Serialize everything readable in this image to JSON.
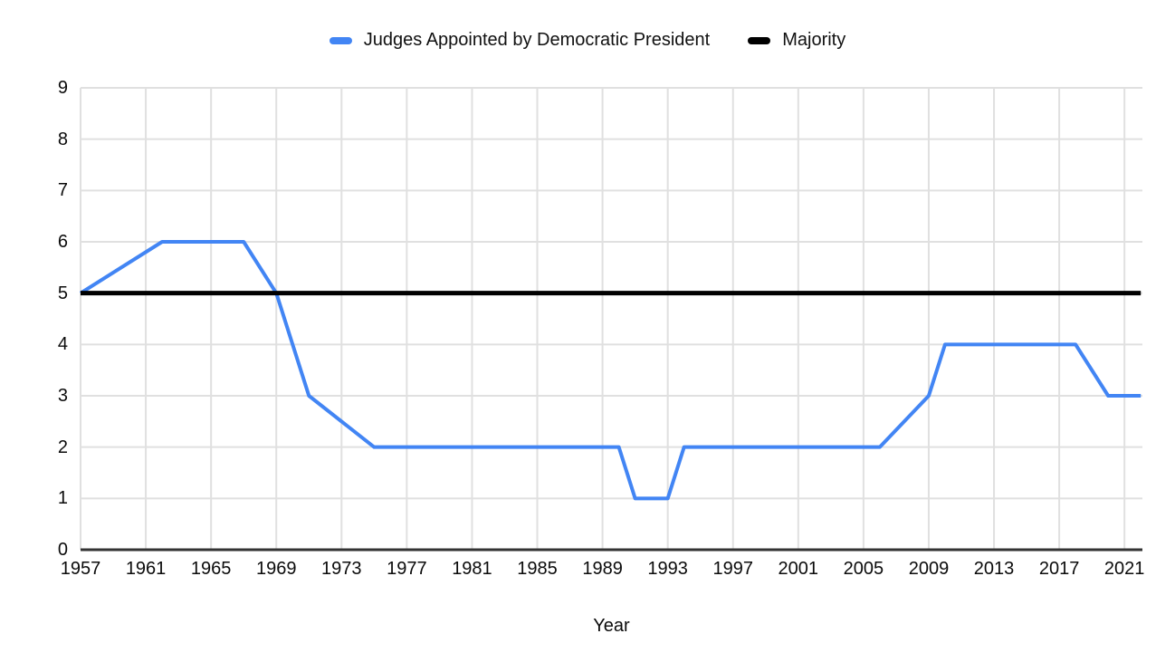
{
  "chart_data": {
    "type": "line",
    "title": "",
    "xlabel": "Year",
    "ylabel": "",
    "xlim": [
      1957,
      2022.1
    ],
    "ylim": [
      0,
      9
    ],
    "grid": true,
    "legend_position": "top",
    "x_ticks": [
      1957,
      1961,
      1965,
      1969,
      1973,
      1977,
      1981,
      1985,
      1989,
      1993,
      1997,
      2001,
      2005,
      2009,
      2013,
      2017,
      2021
    ],
    "y_ticks": [
      0,
      1,
      2,
      3,
      4,
      5,
      6,
      7,
      8,
      9
    ],
    "series": [
      {
        "name": "Judges Appointed by Democratic President",
        "color": "#4285F4",
        "width": 4,
        "points": [
          [
            1957,
            5
          ],
          [
            1962,
            6
          ],
          [
            1967,
            6
          ],
          [
            1969,
            5
          ],
          [
            1971,
            3
          ],
          [
            1975,
            2
          ],
          [
            1990,
            2
          ],
          [
            1991,
            1
          ],
          [
            1993,
            1
          ],
          [
            1994,
            2
          ],
          [
            2006,
            2
          ],
          [
            2009,
            3
          ],
          [
            2010,
            4
          ],
          [
            2018,
            4
          ],
          [
            2020,
            3
          ],
          [
            2022,
            3
          ]
        ]
      },
      {
        "name": "Majority",
        "color": "#000000",
        "width": 5,
        "points": [
          [
            1957,
            5
          ],
          [
            2022,
            5
          ]
        ]
      }
    ],
    "colors": {
      "gridline": "#e0e0e0",
      "axis_line": "#333333",
      "tick_text": "#0b0b0b",
      "background": "#ffffff"
    }
  }
}
